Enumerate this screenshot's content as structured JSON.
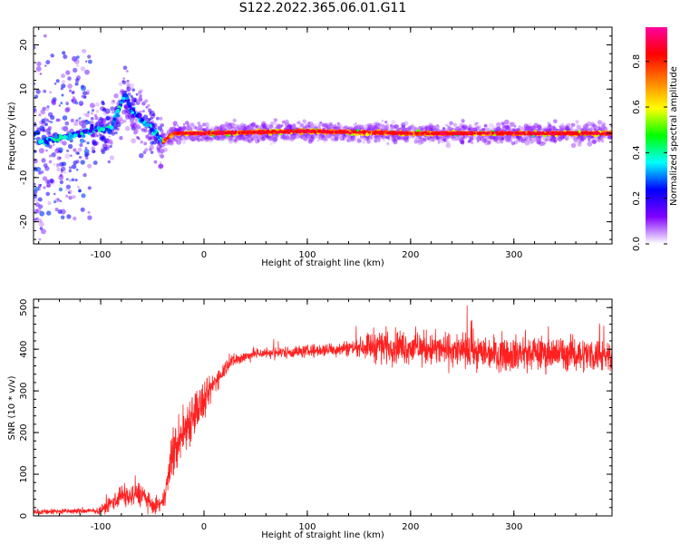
{
  "title": "S122.2022.365.06.01.G11",
  "chart_data": [
    {
      "type": "heatmap",
      "name": "spectrogram",
      "xlabel": "Height of straight line (km)",
      "ylabel": "Frequency (Hz)",
      "xlim": [
        -165,
        395
      ],
      "ylim": [
        -25,
        24
      ],
      "xticks": [
        -100,
        0,
        100,
        200,
        300
      ],
      "yticks": [
        -20,
        -10,
        0,
        10,
        20
      ],
      "ridge": [
        {
          "x": -160,
          "y": -2
        },
        {
          "x": -120,
          "y": 0
        },
        {
          "x": -105,
          "y": 1
        },
        {
          "x": -90,
          "y": 1
        },
        {
          "x": -80,
          "y": 7
        },
        {
          "x": -76,
          "y": 9
        },
        {
          "x": -70,
          "y": 5
        },
        {
          "x": -60,
          "y": 3
        },
        {
          "x": -50,
          "y": 1
        },
        {
          "x": -40,
          "y": -2
        },
        {
          "x": -30,
          "y": 0
        },
        {
          "x": -10,
          "y": 0
        },
        {
          "x": 0,
          "y": 0
        },
        {
          "x": 100,
          "y": 0.5
        },
        {
          "x": 200,
          "y": 0
        },
        {
          "x": 300,
          "y": 0
        },
        {
          "x": 390,
          "y": 0
        }
      ],
      "colorbar": {
        "label": "Normalized spectral amplitude",
        "ticks": [
          "0.0",
          "0.2",
          "0.4",
          "0.6",
          "0.8"
        ],
        "tick_values": [
          0.0,
          0.2,
          0.4,
          0.6,
          0.8
        ],
        "range": [
          0,
          0.95
        ],
        "colors": [
          "#ffffff",
          "#8000ff",
          "#0000ff",
          "#00ffff",
          "#00ff00",
          "#ffff00",
          "#ff8000",
          "#ff0000",
          "#ff00a0"
        ]
      }
    },
    {
      "type": "line",
      "name": "snr",
      "xlabel": "Height of straight line (km)",
      "ylabel": "SNR (10 * v/v)",
      "xlim": [
        -165,
        395
      ],
      "ylim": [
        0,
        520
      ],
      "xticks": [
        -100,
        0,
        100,
        200,
        300
      ],
      "yticks": [
        0,
        100,
        200,
        300,
        400,
        500
      ],
      "color": "#ff2020",
      "envelope": [
        {
          "x": -165,
          "mean": 10,
          "spread": 10
        },
        {
          "x": -100,
          "mean": 12,
          "spread": 10
        },
        {
          "x": -90,
          "mean": 30,
          "spread": 30
        },
        {
          "x": -80,
          "mean": 50,
          "spread": 40
        },
        {
          "x": -70,
          "mean": 45,
          "spread": 40
        },
        {
          "x": -60,
          "mean": 55,
          "spread": 45
        },
        {
          "x": -50,
          "mean": 20,
          "spread": 25
        },
        {
          "x": -40,
          "mean": 30,
          "spread": 25
        },
        {
          "x": -30,
          "mean": 150,
          "spread": 90
        },
        {
          "x": -20,
          "mean": 200,
          "spread": 100
        },
        {
          "x": -10,
          "mean": 250,
          "spread": 90
        },
        {
          "x": 0,
          "mean": 270,
          "spread": 70
        },
        {
          "x": 10,
          "mean": 320,
          "spread": 40
        },
        {
          "x": 25,
          "mean": 370,
          "spread": 25
        },
        {
          "x": 50,
          "mean": 390,
          "spread": 20
        },
        {
          "x": 100,
          "mean": 395,
          "spread": 22
        },
        {
          "x": 150,
          "mean": 405,
          "spread": 30
        },
        {
          "x": 165,
          "mean": 410,
          "spread": 60
        },
        {
          "x": 200,
          "mean": 405,
          "spread": 60
        },
        {
          "x": 250,
          "mean": 395,
          "spread": 60
        },
        {
          "x": 300,
          "mean": 390,
          "spread": 65
        },
        {
          "x": 350,
          "mean": 390,
          "spread": 60
        },
        {
          "x": 395,
          "mean": 385,
          "spread": 60
        }
      ]
    }
  ]
}
